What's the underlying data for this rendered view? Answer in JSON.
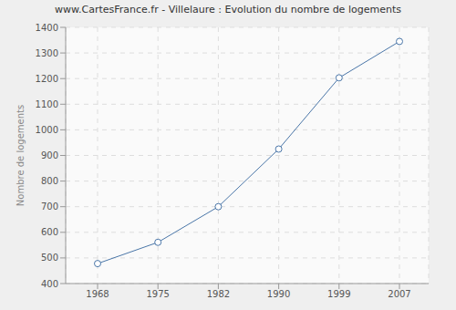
{
  "chart_data": {
    "type": "line",
    "title": "www.CartesFrance.fr - Villelaure : Evolution du nombre de logements",
    "y_label": "Nombre de logements",
    "categories": [
      "1968",
      "1975",
      "1982",
      "1990",
      "1999",
      "2007"
    ],
    "values": [
      478,
      561,
      700,
      925,
      1203,
      1345
    ],
    "color": "#4a76a8",
    "marker": "circle",
    "ylim": [
      400,
      1400
    ],
    "yticks": [
      400,
      500,
      600,
      700,
      800,
      900,
      1000,
      1100,
      1200,
      1300,
      1400
    ],
    "grid": true
  }
}
